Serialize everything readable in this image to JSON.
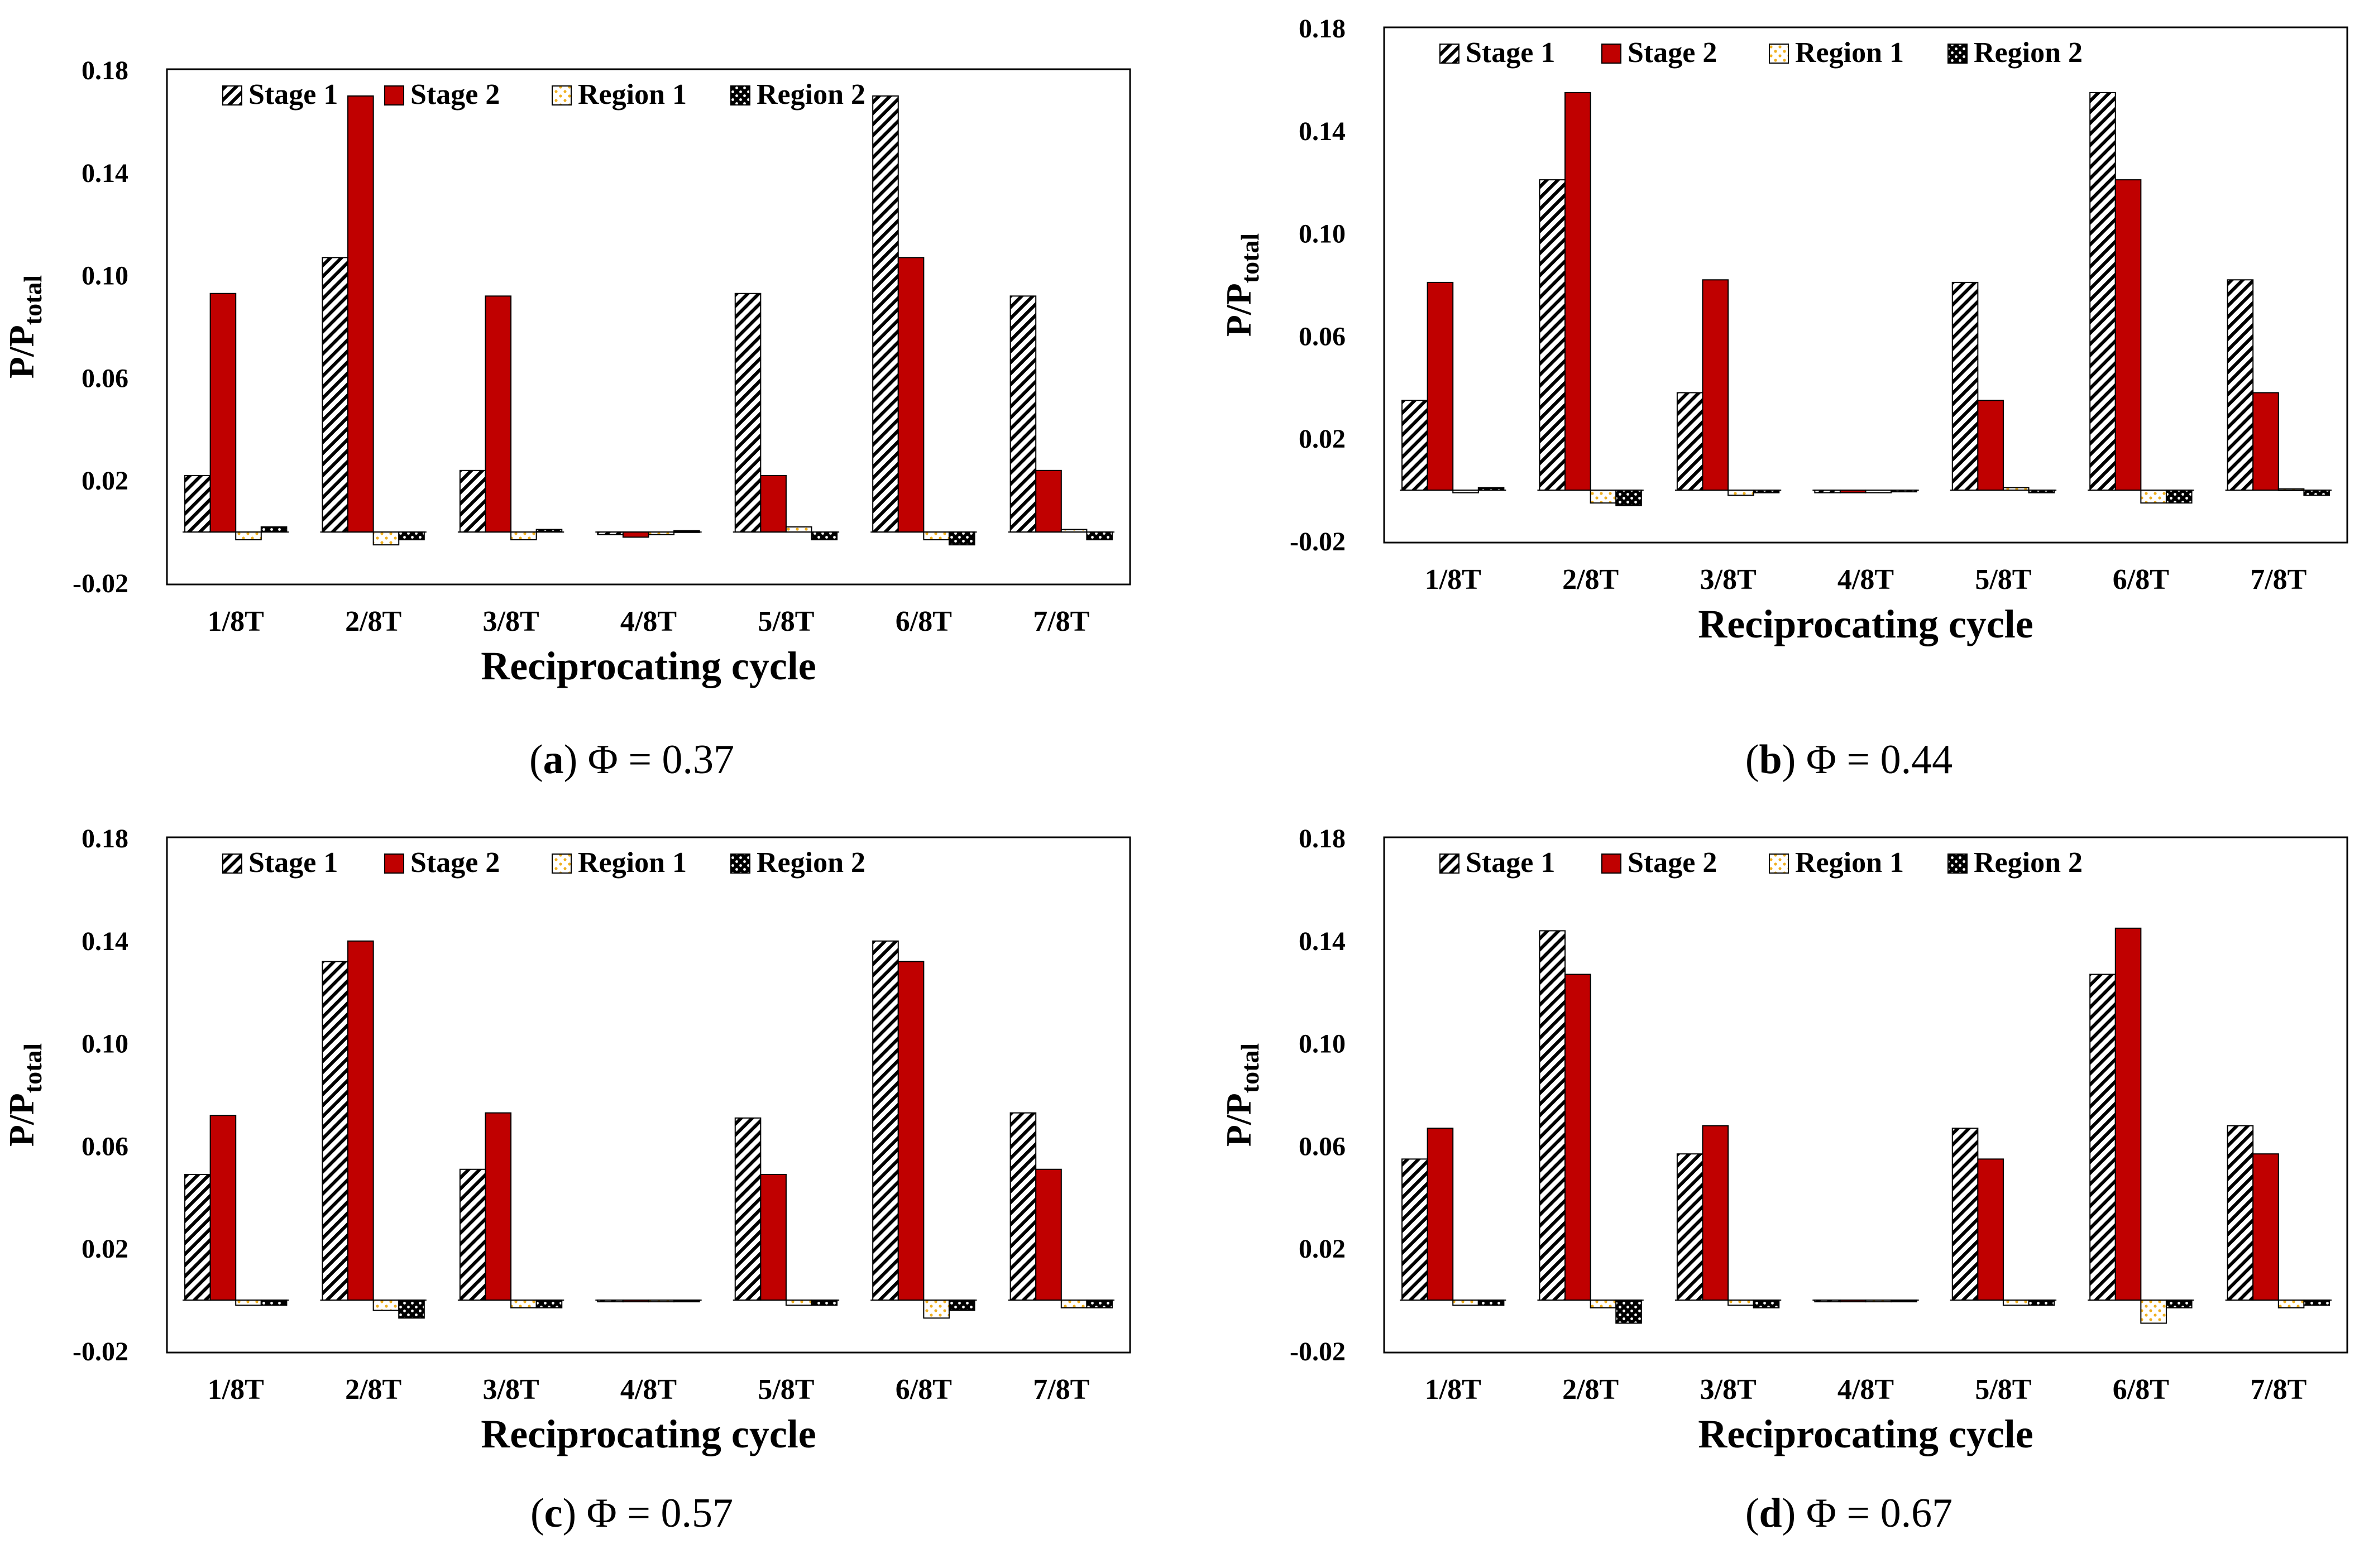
{
  "figure": {
    "panels_count": 4
  },
  "chart_data": [
    {
      "type": "bar",
      "panel_letter": "a",
      "caption": "Φ = 0.37",
      "categories": [
        "1/8T",
        "2/8T",
        "3/8T",
        "4/8T",
        "5/8T",
        "6/8T",
        "7/8T"
      ],
      "series": [
        {
          "name": "Stage 1",
          "values": [
            0.022,
            0.107,
            0.024,
            -0.001,
            0.093,
            0.17,
            0.092
          ]
        },
        {
          "name": "Stage 2",
          "values": [
            0.093,
            0.17,
            0.092,
            -0.002,
            0.022,
            0.107,
            0.024
          ]
        },
        {
          "name": "Region 1",
          "values": [
            -0.003,
            -0.005,
            -0.003,
            -0.001,
            0.002,
            -0.003,
            0.001
          ]
        },
        {
          "name": "Region 2",
          "values": [
            0.002,
            -0.003,
            0.001,
            0.0005,
            -0.003,
            -0.005,
            -0.003
          ]
        }
      ],
      "xlabel": "Reciprocating cycle",
      "ylabel": "P/P",
      "ylabel_sub": "total",
      "ylim": [
        -0.02,
        0.18
      ],
      "yticks": [
        "0.18",
        "0.14",
        "0.10",
        "0.06",
        "0.02",
        "-0.02"
      ],
      "legend": "top-left"
    },
    {
      "type": "bar",
      "panel_letter": "b",
      "caption": "Φ = 0.44",
      "categories": [
        "1/8T",
        "2/8T",
        "3/8T",
        "4/8T",
        "5/8T",
        "6/8T",
        "7/8T"
      ],
      "series": [
        {
          "name": "Stage 1",
          "values": [
            0.035,
            0.121,
            0.038,
            -0.001,
            0.081,
            0.155,
            0.082
          ]
        },
        {
          "name": "Stage 2",
          "values": [
            0.081,
            0.155,
            0.082,
            -0.001,
            0.035,
            0.121,
            0.038
          ]
        },
        {
          "name": "Region 1",
          "values": [
            -0.001,
            -0.005,
            -0.002,
            -0.001,
            0.001,
            -0.005,
            0.0005
          ]
        },
        {
          "name": "Region 2",
          "values": [
            0.001,
            -0.006,
            -0.001,
            -0.0005,
            -0.001,
            -0.005,
            -0.002
          ]
        }
      ],
      "xlabel": "Reciprocating cycle",
      "ylabel": "P/P",
      "ylabel_sub": "total",
      "ylim": [
        -0.02,
        0.18
      ],
      "yticks": [
        "0.18",
        "0.14",
        "0.10",
        "0.06",
        "0.02",
        "-0.02"
      ],
      "legend": "top-left"
    },
    {
      "type": "bar",
      "panel_letter": "c",
      "caption": "Φ = 0.57",
      "categories": [
        "1/8T",
        "2/8T",
        "3/8T",
        "4/8T",
        "5/8T",
        "6/8T",
        "7/8T"
      ],
      "series": [
        {
          "name": "Stage 1",
          "values": [
            0.049,
            0.132,
            0.051,
            -0.0005,
            0.071,
            0.14,
            0.073
          ]
        },
        {
          "name": "Stage 2",
          "values": [
            0.072,
            0.14,
            0.073,
            -0.0005,
            0.049,
            0.132,
            0.051
          ]
        },
        {
          "name": "Region 1",
          "values": [
            -0.002,
            -0.004,
            -0.003,
            -0.0005,
            -0.002,
            -0.007,
            -0.003
          ]
        },
        {
          "name": "Region 2",
          "values": [
            -0.002,
            -0.007,
            -0.003,
            -0.0005,
            -0.002,
            -0.004,
            -0.003
          ]
        }
      ],
      "xlabel": "Reciprocating cycle",
      "ylabel": "P/P",
      "ylabel_sub": "total",
      "ylim": [
        -0.02,
        0.18
      ],
      "yticks": [
        "0.18",
        "0.14",
        "0.10",
        "0.06",
        "0.02",
        "-0.02"
      ],
      "legend": "top-left"
    },
    {
      "type": "bar",
      "panel_letter": "d",
      "caption": "Φ = 0.67",
      "categories": [
        "1/8T",
        "2/8T",
        "3/8T",
        "4/8T",
        "5/8T",
        "6/8T",
        "7/8T"
      ],
      "series": [
        {
          "name": "Stage 1",
          "values": [
            0.055,
            0.144,
            0.057,
            -0.0005,
            0.067,
            0.127,
            0.068
          ]
        },
        {
          "name": "Stage 2",
          "values": [
            0.067,
            0.127,
            0.068,
            -0.0005,
            0.055,
            0.145,
            0.057
          ]
        },
        {
          "name": "Region 1",
          "values": [
            -0.002,
            -0.003,
            -0.002,
            -0.0005,
            -0.002,
            -0.009,
            -0.003
          ]
        },
        {
          "name": "Region 2",
          "values": [
            -0.002,
            -0.009,
            -0.003,
            -0.0005,
            -0.002,
            -0.003,
            -0.002
          ]
        }
      ],
      "xlabel": "Reciprocating cycle",
      "ylabel": "P/P",
      "ylabel_sub": "total",
      "ylim": [
        -0.02,
        0.18
      ],
      "yticks": [
        "0.18",
        "0.14",
        "0.10",
        "0.06",
        "0.02",
        "-0.02"
      ],
      "legend": "top-left"
    }
  ],
  "colors": {
    "stage2": "#c00000",
    "hatch": "#000000",
    "region1_dots": "#f0b020",
    "outline": "#000000",
    "background": "#ffffff"
  }
}
